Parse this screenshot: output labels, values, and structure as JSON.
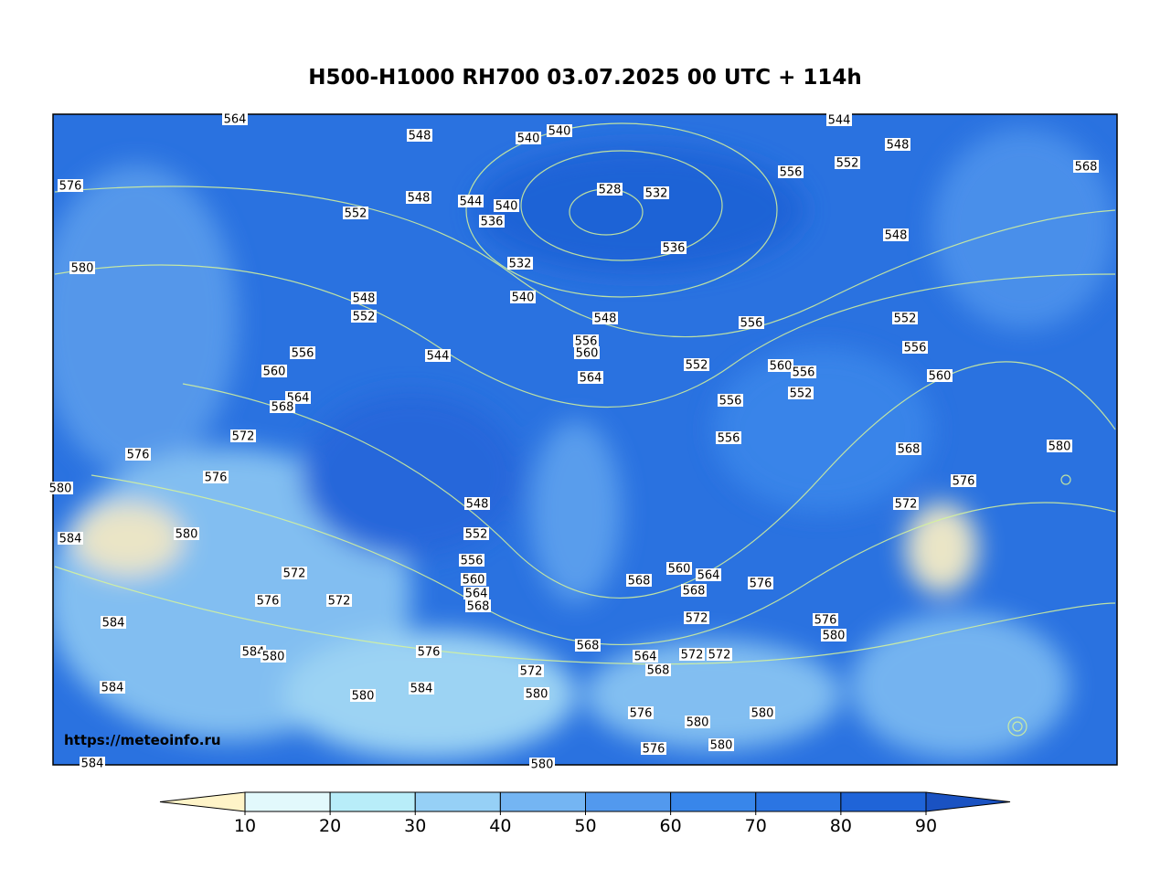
{
  "title": "H500-H1000 RH700 03.07.2025 00 UTC + 114h",
  "watermark": "https://meteoinfo.ru",
  "contour_labels": [
    "564",
    "548",
    "540",
    "540",
    "544",
    "548",
    "552",
    "556",
    "568",
    "576",
    "528",
    "532",
    "548",
    "544",
    "540",
    "536",
    "552",
    "548",
    "536",
    "580",
    "532",
    "540",
    "548",
    "552",
    "548",
    "556",
    "552",
    "556",
    "556",
    "560",
    "556",
    "544",
    "552",
    "560",
    "556",
    "560",
    "564",
    "560",
    "564",
    "568",
    "552",
    "556",
    "572",
    "556",
    "580",
    "568",
    "576",
    "576",
    "576",
    "580",
    "548",
    "572",
    "580",
    "584",
    "552",
    "556",
    "560",
    "560",
    "564",
    "576",
    "568",
    "564",
    "568",
    "572",
    "576",
    "572",
    "568",
    "572",
    "576",
    "580",
    "584",
    "568",
    "576",
    "584",
    "580",
    "564",
    "572",
    "572",
    "568",
    "572",
    "584",
    "584",
    "580",
    "580",
    "576",
    "580",
    "580",
    "576",
    "580",
    "584",
    "580"
  ],
  "colorbar": {
    "ticks": [
      10,
      20,
      30,
      40,
      50,
      60,
      70,
      80,
      90
    ],
    "colors": [
      "#fff4c8",
      "#e2f9fc",
      "#b8edf9",
      "#96d0f6",
      "#74b5f3",
      "#5299ee",
      "#3886ea",
      "#2b75e3",
      "#1f64d8",
      "#1a52c2"
    ]
  }
}
